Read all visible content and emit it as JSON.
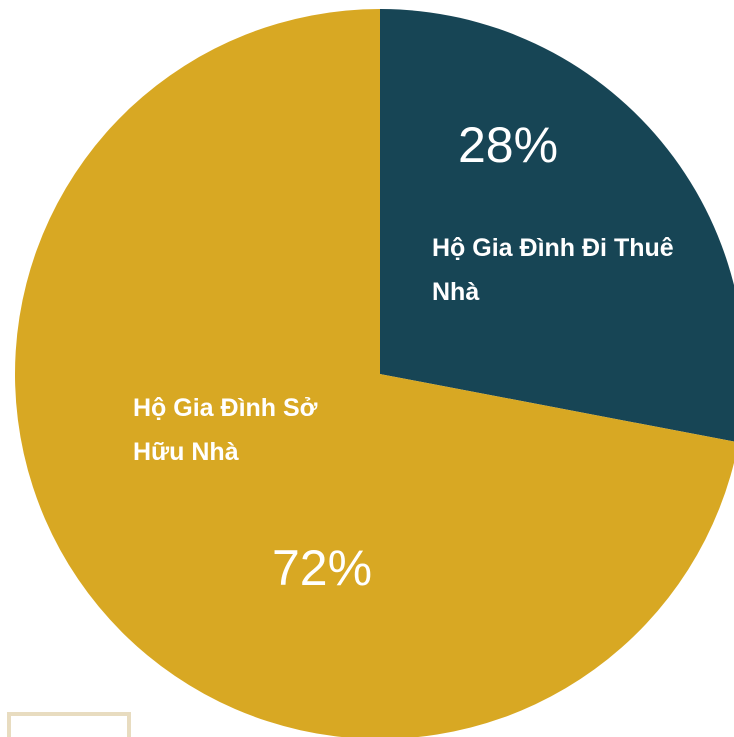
{
  "chart_data": {
    "type": "pie",
    "categories": [
      "Hộ Gia Đình Đi Thuê Nhà",
      "Hộ Gia Đình Sở Hữu Nhà"
    ],
    "values": [
      28,
      72
    ],
    "value_labels": [
      "28%",
      "72%"
    ],
    "colors": [
      "#174555",
      "#d8a823"
    ]
  }
}
